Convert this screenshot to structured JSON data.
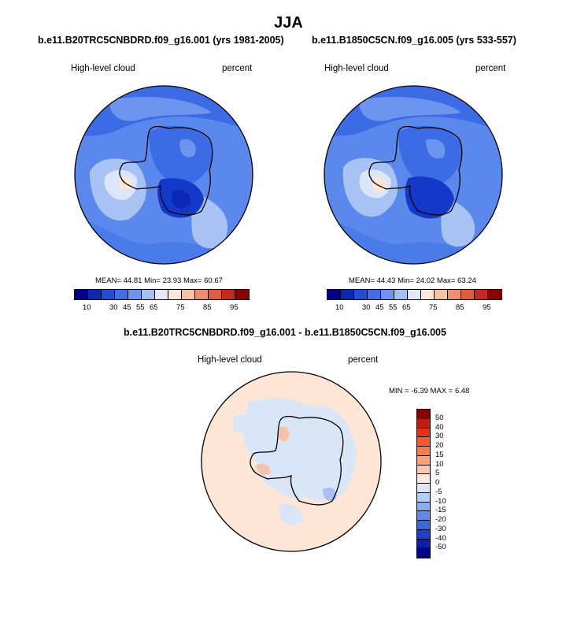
{
  "page_title": "JJA",
  "panels": [
    {
      "case": "b.e11.B20TRC5CNBDRD.f09_g16.001 (yrs 1981-2005)",
      "variable": "High-level cloud",
      "units": "percent",
      "mean_label": "MEAN=",
      "mean": "44.81",
      "min_label": "Min=",
      "min": "23.93",
      "max_label": "Max=",
      "max": "60.67"
    },
    {
      "case": "b.e11.B1850C5CN.f09_g16.005 (yrs 533-557)",
      "variable": "High-level cloud",
      "units": "percent",
      "mean_label": "MEAN=",
      "mean": "44.43",
      "min_label": "Min=",
      "min": "24.02",
      "max_label": "Max=",
      "max": "63.24"
    }
  ],
  "diff_panel": {
    "case": "b.e11.B20TRC5CNBDRD.f09_g16.001 - b.e11.B1850C5CN.f09_g16.005",
    "variable": "High-level cloud",
    "units": "percent",
    "minmax": "MIN =  -6.39 MAX =   6.48"
  },
  "colorbar_main": {
    "colors": [
      "#00008b",
      "#0a28b4",
      "#1f4fd8",
      "#3f6fe6",
      "#6d95ef",
      "#a4bff5",
      "#dfe9fb",
      "#fde6d5",
      "#f7c1a4",
      "#ef8f6b",
      "#e45a3c",
      "#c8281e",
      "#8b0000"
    ],
    "tick_labels": [
      "10",
      "30",
      "45",
      "55",
      "65",
      "75",
      "85",
      "95"
    ]
  },
  "colorbar_diff": {
    "colors": [
      "#8b0000",
      "#c41b0e",
      "#e53112",
      "#f55a2a",
      "#f97a4c",
      "#fba27c",
      "#fdc8ad",
      "#fdeadc",
      "#dce8fa",
      "#b5cdf5",
      "#8aaef0",
      "#5e8aea",
      "#3a66e0",
      "#1c3fcf",
      "#0a1fb0",
      "#00008b"
    ],
    "tick_labels": [
      "50",
      "40",
      "30",
      "20",
      "15",
      "10",
      "5",
      "0",
      "-5",
      "-10",
      "-15",
      "-20",
      "-30",
      "-40",
      "-50"
    ]
  },
  "map_colors": {
    "ocean_deep": "#3b6be5",
    "mid": "#5a88ec",
    "light": "#a8c2f4",
    "pale": "#dbe6fa",
    "cream": "#fde6d5",
    "dark": "#1438c8",
    "diff_bg": "#fde6d5",
    "diff_blue": "#d8e6f8",
    "diff_mid": "#a9c1ee",
    "diff_red": "#f4c2a6"
  }
}
